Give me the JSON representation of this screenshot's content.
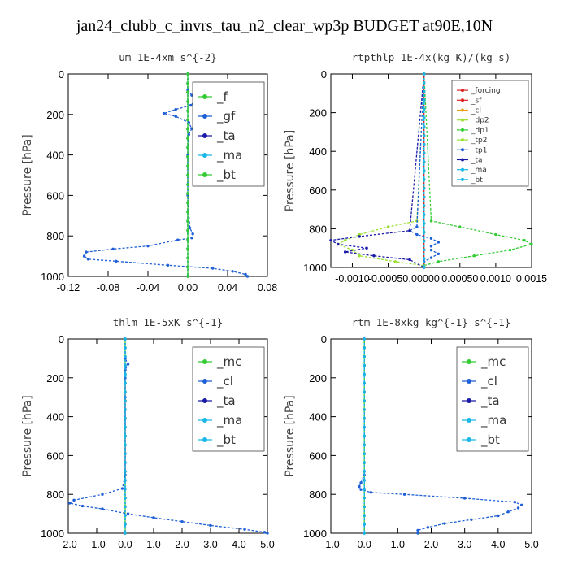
{
  "figure": {
    "title": "jan24_clubb_c_invrs_tau_n2_clear_wp3p  BUDGET at90E,10N"
  },
  "colors": {
    "green": "#33cc33",
    "blue": "#1e5fd6",
    "navy": "#1a1aa8",
    "cyan": "#19b6e6",
    "red": "#dd2222",
    "orange": "#e8a020",
    "lime": "#99e033",
    "gray": "#888888"
  },
  "chart_data": [
    {
      "type": "line",
      "title": "um   1E-4xm s^{-2}",
      "ylabel": "Pressure [hPa]",
      "xlim": [
        -0.12,
        0.08
      ],
      "ylim": [
        1000,
        0
      ],
      "xticks": [
        -0.12,
        -0.08,
        -0.04,
        0.0,
        0.04,
        0.08
      ],
      "xtick_labels": [
        "-0.12",
        "-0.08",
        "-0.04",
        "0.00",
        "0.04",
        "0.08"
      ],
      "yticks": [
        0,
        200,
        400,
        600,
        800,
        1000
      ],
      "ytick_labels": [
        "0",
        "200",
        "400",
        "600",
        "800",
        "1000"
      ],
      "legend": {
        "placement": "top-right",
        "size": "large"
      },
      "series": [
        {
          "name": "_f",
          "color": "green",
          "p": [
            0,
            1000
          ],
          "x": [
            0,
            0
          ]
        },
        {
          "name": "_gf",
          "color": "blue",
          "p": [
            0,
            80,
            105,
            130,
            155,
            175,
            195,
            210,
            240,
            270,
            300,
            400,
            600,
            760,
            790,
            810,
            820,
            850,
            865,
            880,
            900,
            915,
            925,
            945,
            960,
            975,
            990,
            1000
          ],
          "x": [
            0,
            0,
            0.004,
            0.008,
            0.003,
            -0.012,
            -0.024,
            -0.012,
            0.001,
            0.004,
            0.001,
            0,
            0,
            0.002,
            0.005,
            0.004,
            -0.01,
            -0.04,
            -0.075,
            -0.102,
            -0.104,
            -0.1,
            -0.072,
            -0.02,
            0.025,
            0.045,
            0.058,
            0.06
          ]
        },
        {
          "name": "_ta",
          "color": "navy",
          "p": [
            0,
            1000
          ],
          "x": [
            0,
            0
          ]
        },
        {
          "name": "_ma",
          "color": "cyan",
          "p": [
            0,
            1000
          ],
          "x": [
            0,
            0
          ]
        },
        {
          "name": "_bt",
          "color": "green",
          "p": [
            0,
            1000
          ],
          "x": [
            0,
            0
          ]
        }
      ]
    },
    {
      "type": "line",
      "title": "rtpthlp   1E-4x(kg K)/(kg s)",
      "ylabel": "Pressure [hPa]",
      "xlim": [
        -0.0013,
        0.0015
      ],
      "ylim": [
        1000,
        0
      ],
      "xticks": [
        -0.001,
        -0.0005,
        0.0,
        0.0005,
        0.001,
        0.0015
      ],
      "xtick_labels": [
        "-0.0010",
        "-0.00050",
        ".00000",
        "0.00050",
        "0.0010",
        "0.0015"
      ],
      "yticks": [
        0,
        200,
        400,
        600,
        800,
        1000
      ],
      "ytick_labels": [
        "0",
        "200",
        "400",
        "600",
        "800",
        "1000"
      ],
      "legend": {
        "placement": "top-right",
        "size": "small"
      },
      "series": [
        {
          "name": "_forcing",
          "color": "red",
          "p": [
            0,
            1000
          ],
          "x": [
            0,
            0
          ]
        },
        {
          "name": "_sf",
          "color": "red",
          "p": [
            0,
            1000
          ],
          "x": [
            0,
            0
          ]
        },
        {
          "name": "_cl",
          "color": "orange",
          "p": [
            0,
            1000
          ],
          "x": [
            0,
            0
          ]
        },
        {
          "name": "_dp2",
          "color": "lime",
          "p": [
            0,
            1000
          ],
          "x": [
            0,
            0
          ]
        },
        {
          "name": "_dp1",
          "color": "green",
          "p": [
            0,
            760,
            790,
            830,
            860,
            880,
            910,
            940,
            970,
            990,
            1000
          ],
          "x": [
            0,
            0.0001,
            0.0005,
            0.001,
            0.0014,
            0.0015,
            0.0012,
            0.0007,
            0.0002,
            0,
            0
          ]
        },
        {
          "name": "_tp2",
          "color": "lime",
          "p": [
            0,
            760,
            790,
            830,
            860,
            880,
            910,
            940,
            970,
            990,
            1000
          ],
          "x": [
            0,
            -0.0001,
            -0.0005,
            -0.0009,
            -0.0011,
            -0.0012,
            -0.001,
            -0.0009,
            -0.0004,
            0,
            0
          ]
        },
        {
          "name": "_tp1",
          "color": "blue",
          "p": [
            0,
            790,
            810,
            830,
            850,
            870,
            890,
            910,
            930,
            950,
            970,
            1000
          ],
          "x": [
            0,
            -0.0001,
            -0.0002,
            -0.0001,
            0.0001,
            0.0002,
            0.0001,
            0.0001,
            0.0002,
            0.0001,
            0,
            0
          ]
        },
        {
          "name": "_ta",
          "color": "navy",
          "p": [
            0,
            810,
            840,
            860,
            880,
            900,
            920,
            940,
            960,
            1000
          ],
          "x": [
            0,
            -0.0002,
            -0.0009,
            -0.0013,
            -0.0012,
            -0.0008,
            -0.0011,
            -0.0007,
            -0.0002,
            0
          ]
        },
        {
          "name": "_ma",
          "color": "cyan",
          "p": [
            0,
            1000
          ],
          "x": [
            0,
            0
          ]
        },
        {
          "name": "_bt",
          "color": "cyan",
          "p": [
            0,
            1000
          ],
          "x": [
            0,
            0
          ]
        }
      ]
    },
    {
      "type": "line",
      "title": "thlm   1E-5xK s^{-1}",
      "ylabel": "Pressure [hPa]",
      "xlim": [
        -2.0,
        5.0
      ],
      "ylim": [
        1000,
        0
      ],
      "xticks": [
        -2,
        -1,
        0,
        1,
        2,
        3,
        4,
        5
      ],
      "xtick_labels": [
        "-2.0",
        "-1.0",
        "0.0",
        "1.0",
        "2.0",
        "3.0",
        "4.0",
        "5.0"
      ],
      "yticks": [
        0,
        200,
        400,
        600,
        800,
        1000
      ],
      "ytick_labels": [
        "0",
        "200",
        "400",
        "600",
        "800",
        "1000"
      ],
      "legend": {
        "placement": "top-right",
        "size": "large"
      },
      "series": [
        {
          "name": "_mc",
          "color": "green",
          "p": [
            0,
            1000
          ],
          "x": [
            0,
            0
          ]
        },
        {
          "name": "_cl",
          "color": "blue",
          "p": [
            0,
            100,
            130,
            160,
            200,
            300,
            700,
            770,
            800,
            830,
            845,
            860,
            875,
            900,
            920,
            940,
            960,
            980,
            995,
            1000
          ],
          "x": [
            0,
            0,
            0.1,
            0,
            0,
            0,
            0,
            -0.1,
            -0.8,
            -1.8,
            -1.95,
            -1.5,
            -0.8,
            0.1,
            1.0,
            2.0,
            3.0,
            4.2,
            4.9,
            5.0
          ]
        },
        {
          "name": "_ta",
          "color": "navy",
          "p": [
            0,
            1000
          ],
          "x": [
            0,
            0
          ]
        },
        {
          "name": "_ma",
          "color": "cyan",
          "p": [
            0,
            1000
          ],
          "x": [
            0,
            0
          ]
        },
        {
          "name": "_bt",
          "color": "cyan",
          "p": [
            0,
            1000
          ],
          "x": [
            0,
            0
          ]
        }
      ]
    },
    {
      "type": "line",
      "title": "rtm   1E-8xkg kg^{-1} s^{-1}",
      "ylabel": "Pressure [hPa]",
      "xlim": [
        -1.0,
        5.0
      ],
      "ylim": [
        1000,
        0
      ],
      "xticks": [
        -1,
        0,
        1,
        2,
        3,
        4,
        5
      ],
      "xtick_labels": [
        "-1.0",
        "0.0",
        "1.0",
        "2.0",
        "3.0",
        "4.0",
        "5.0"
      ],
      "yticks": [
        0,
        200,
        400,
        600,
        800,
        1000
      ],
      "ytick_labels": [
        "0",
        "200",
        "400",
        "600",
        "800",
        "1000"
      ],
      "legend": {
        "placement": "top-right",
        "size": "large"
      },
      "series": [
        {
          "name": "_mc",
          "color": "green",
          "p": [
            0,
            1000
          ],
          "x": [
            0,
            0
          ]
        },
        {
          "name": "_cl",
          "color": "blue",
          "p": [
            0,
            700,
            740,
            760,
            775,
            790,
            800,
            820,
            840,
            855,
            870,
            890,
            910,
            930,
            950,
            970,
            985,
            1000
          ],
          "x": [
            0,
            0,
            -0.1,
            -0.15,
            -0.1,
            0.2,
            1.2,
            3.0,
            4.5,
            4.7,
            4.6,
            4.3,
            4.0,
            3.2,
            2.4,
            1.9,
            1.6,
            1.6
          ]
        },
        {
          "name": "_ta",
          "color": "navy",
          "p": [
            0,
            1000
          ],
          "x": [
            0,
            0
          ]
        },
        {
          "name": "_ma",
          "color": "cyan",
          "p": [
            0,
            1000
          ],
          "x": [
            0,
            0
          ]
        },
        {
          "name": "_bt",
          "color": "cyan",
          "p": [
            0,
            1000
          ],
          "x": [
            0,
            0
          ]
        }
      ]
    }
  ]
}
